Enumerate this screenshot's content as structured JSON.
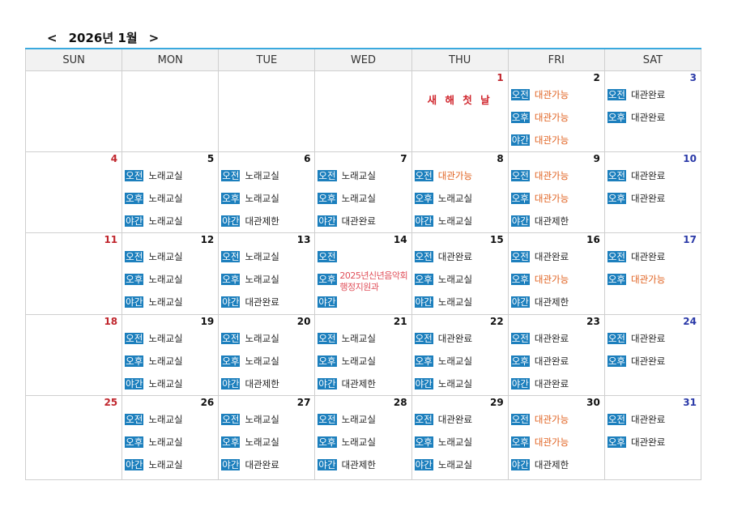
{
  "title": "2026년 1월",
  "nav": {
    "prev": "<",
    "next": ">"
  },
  "weekdays": [
    "SUN",
    "MON",
    "TUE",
    "WED",
    "THU",
    "FRI",
    "SAT"
  ],
  "colors": {
    "badge": "#1c7fbd",
    "available": "#e0601e",
    "sunday": "#c0262d",
    "saturday": "#2b3aa8",
    "header_line": "#3aa9de"
  },
  "slots": [
    "오전",
    "오후",
    "야간"
  ],
  "weeks": [
    [
      {
        "d": ""
      },
      {
        "d": ""
      },
      {
        "d": ""
      },
      {
        "d": ""
      },
      {
        "d": "1",
        "holiday": "새 해 첫 날",
        "e": []
      },
      {
        "d": "2",
        "e": [
          [
            "오전",
            "대관가능"
          ],
          [
            "오후",
            "대관가능"
          ],
          [
            "야간",
            "대관가능"
          ]
        ]
      },
      {
        "d": "3",
        "e": [
          [
            "오전",
            "대관완료"
          ],
          [
            "오후",
            "대관완료"
          ]
        ]
      }
    ],
    [
      {
        "d": "4",
        "e": []
      },
      {
        "d": "5",
        "e": [
          [
            "오전",
            "노래교실"
          ],
          [
            "오후",
            "노래교실"
          ],
          [
            "야간",
            "노래교실"
          ]
        ]
      },
      {
        "d": "6",
        "e": [
          [
            "오전",
            "노래교실"
          ],
          [
            "오후",
            "노래교실"
          ],
          [
            "야간",
            "대관제한"
          ]
        ]
      },
      {
        "d": "7",
        "e": [
          [
            "오전",
            "노래교실"
          ],
          [
            "오후",
            "노래교실"
          ],
          [
            "야간",
            "대관완료"
          ]
        ]
      },
      {
        "d": "8",
        "e": [
          [
            "오전",
            "대관가능"
          ],
          [
            "오후",
            "노래교실"
          ],
          [
            "야간",
            "노래교실"
          ]
        ]
      },
      {
        "d": "9",
        "e": [
          [
            "오전",
            "대관가능"
          ],
          [
            "오후",
            "대관가능"
          ],
          [
            "야간",
            "대관제한"
          ]
        ]
      },
      {
        "d": "10",
        "e": [
          [
            "오전",
            "대관완료"
          ],
          [
            "오후",
            "대관완료"
          ]
        ]
      }
    ],
    [
      {
        "d": "11",
        "e": []
      },
      {
        "d": "12",
        "e": [
          [
            "오전",
            "노래교실"
          ],
          [
            "오후",
            "노래교실"
          ],
          [
            "야간",
            "노래교실"
          ]
        ]
      },
      {
        "d": "13",
        "e": [
          [
            "오전",
            "노래교실"
          ],
          [
            "오후",
            "노래교실"
          ],
          [
            "야간",
            "대관완료"
          ]
        ]
      },
      {
        "d": "14",
        "e": [
          [
            "오전",
            ""
          ],
          [
            "오후",
            ""
          ],
          [
            "야간",
            ""
          ]
        ],
        "note": [
          "2025년신년음악회",
          "행정지원과"
        ]
      },
      {
        "d": "15",
        "e": [
          [
            "오전",
            "대관완료"
          ],
          [
            "오후",
            "노래교실"
          ],
          [
            "야간",
            "노래교실"
          ]
        ]
      },
      {
        "d": "16",
        "e": [
          [
            "오전",
            "대관완료"
          ],
          [
            "오후",
            "대관가능"
          ],
          [
            "야간",
            "대관제한"
          ]
        ]
      },
      {
        "d": "17",
        "e": [
          [
            "오전",
            "대관완료"
          ],
          [
            "오후",
            "대관가능"
          ]
        ]
      }
    ],
    [
      {
        "d": "18",
        "e": []
      },
      {
        "d": "19",
        "e": [
          [
            "오전",
            "노래교실"
          ],
          [
            "오후",
            "노래교실"
          ],
          [
            "야간",
            "노래교실"
          ]
        ]
      },
      {
        "d": "20",
        "e": [
          [
            "오전",
            "노래교실"
          ],
          [
            "오후",
            "노래교실"
          ],
          [
            "야간",
            "대관제한"
          ]
        ]
      },
      {
        "d": "21",
        "e": [
          [
            "오전",
            "노래교실"
          ],
          [
            "오후",
            "노래교실"
          ],
          [
            "야간",
            "대관제한"
          ]
        ]
      },
      {
        "d": "22",
        "e": [
          [
            "오전",
            "대관완료"
          ],
          [
            "오후",
            "노래교실"
          ],
          [
            "야간",
            "노래교실"
          ]
        ]
      },
      {
        "d": "23",
        "e": [
          [
            "오전",
            "대관완료"
          ],
          [
            "오후",
            "대관완료"
          ],
          [
            "야간",
            "대관완료"
          ]
        ]
      },
      {
        "d": "24",
        "e": [
          [
            "오전",
            "대관완료"
          ],
          [
            "오후",
            "대관완료"
          ]
        ]
      }
    ],
    [
      {
        "d": "25",
        "e": []
      },
      {
        "d": "26",
        "e": [
          [
            "오전",
            "노래교실"
          ],
          [
            "오후",
            "노래교실"
          ],
          [
            "야간",
            "노래교실"
          ]
        ]
      },
      {
        "d": "27",
        "e": [
          [
            "오전",
            "노래교실"
          ],
          [
            "오후",
            "노래교실"
          ],
          [
            "야간",
            "대관완료"
          ]
        ]
      },
      {
        "d": "28",
        "e": [
          [
            "오전",
            "노래교실"
          ],
          [
            "오후",
            "노래교실"
          ],
          [
            "야간",
            "대관제한"
          ]
        ]
      },
      {
        "d": "29",
        "e": [
          [
            "오전",
            "대관완료"
          ],
          [
            "오후",
            "노래교실"
          ],
          [
            "야간",
            "노래교실"
          ]
        ]
      },
      {
        "d": "30",
        "e": [
          [
            "오전",
            "대관가능"
          ],
          [
            "오후",
            "대관가능"
          ],
          [
            "야간",
            "대관제한"
          ]
        ]
      },
      {
        "d": "31",
        "e": [
          [
            "오전",
            "대관완료"
          ],
          [
            "오후",
            "대관완료"
          ]
        ]
      }
    ]
  ]
}
